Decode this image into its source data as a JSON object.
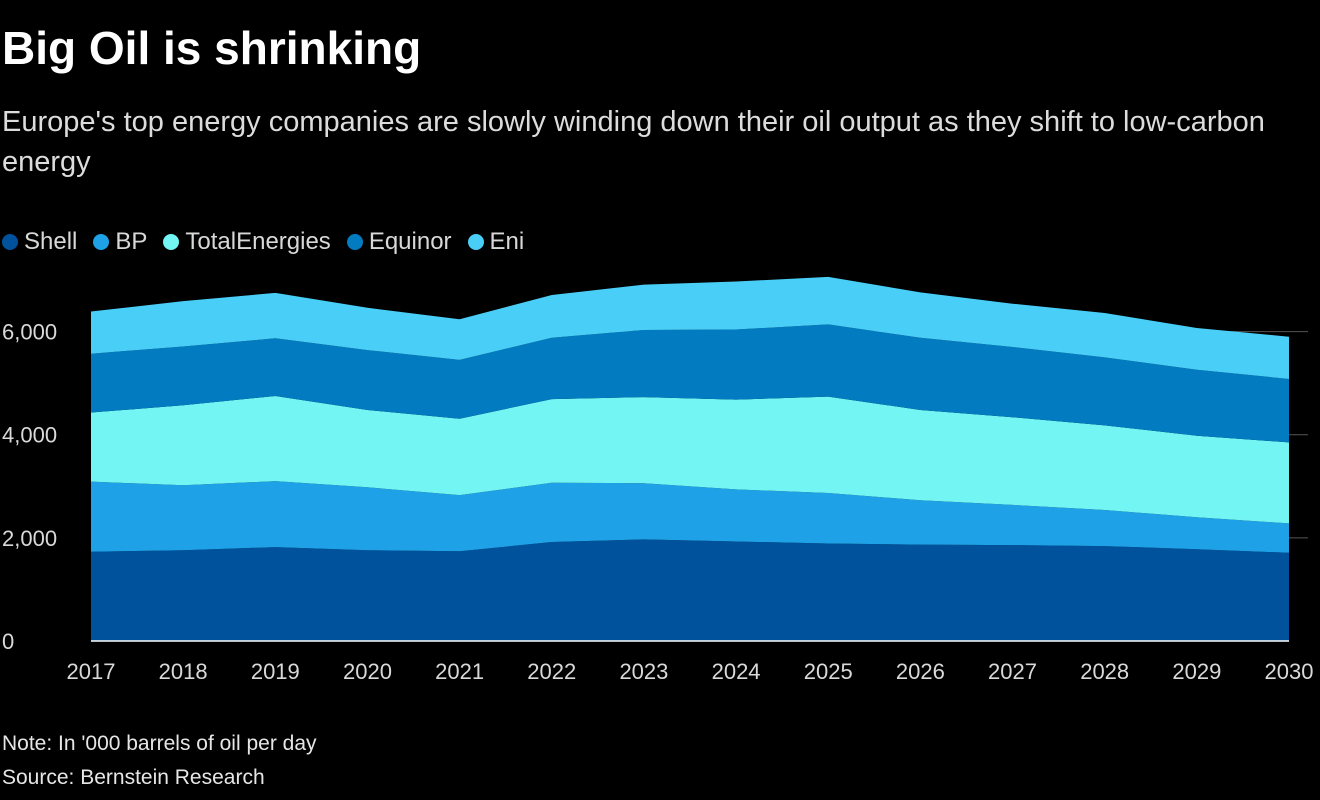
{
  "title": "Big Oil is shrinking",
  "subtitle": "Europe's top energy companies are slowly winding down their oil output as they shift to low-carbon energy",
  "note": "Note: In '000 barrels of oil per day",
  "source": "Source: Bernstein Research",
  "colors": {
    "Shell": "#00529c",
    "BP": "#1ea1e6",
    "TotalEnergies": "#72f5f3",
    "Equinor": "#037bc1",
    "Eni": "#48cef7",
    "grid": "#555555",
    "axis_text": "#d9d9d9"
  },
  "chart_data": {
    "type": "area",
    "stacked": true,
    "x": [
      2017,
      2018,
      2019,
      2020,
      2021,
      2022,
      2023,
      2024,
      2025,
      2026,
      2027,
      2028,
      2029,
      2030
    ],
    "x_tick_labels": [
      "2017",
      "2018",
      "2019",
      "2020",
      "2021",
      "2022",
      "2023",
      "2024",
      "2025",
      "2026",
      "2027",
      "2028",
      "2029",
      "2030"
    ],
    "y_ticks": [
      0,
      2000,
      4000,
      6000
    ],
    "y_tick_labels": [
      "0",
      "2,000",
      "4,000",
      "6,000"
    ],
    "ylim": [
      0,
      7000
    ],
    "grid": true,
    "legend_position": "top-left",
    "series": [
      {
        "name": "Shell",
        "values": [
          1730,
          1760,
          1820,
          1760,
          1740,
          1920,
          1970,
          1930,
          1890,
          1870,
          1860,
          1840,
          1780,
          1710
        ]
      },
      {
        "name": "BP",
        "values": [
          1360,
          1260,
          1280,
          1220,
          1090,
          1150,
          1090,
          1010,
          980,
          860,
          780,
          700,
          620,
          570
        ]
      },
      {
        "name": "TotalEnergies",
        "values": [
          1340,
          1550,
          1650,
          1500,
          1480,
          1620,
          1670,
          1740,
          1870,
          1750,
          1700,
          1640,
          1580,
          1570
        ]
      },
      {
        "name": "Equinor",
        "values": [
          1140,
          1140,
          1120,
          1160,
          1140,
          1190,
          1300,
          1360,
          1400,
          1400,
          1360,
          1320,
          1280,
          1230
        ]
      },
      {
        "name": "Eni",
        "values": [
          820,
          880,
          880,
          820,
          790,
          830,
          880,
          930,
          920,
          880,
          840,
          860,
          810,
          820
        ]
      }
    ]
  }
}
